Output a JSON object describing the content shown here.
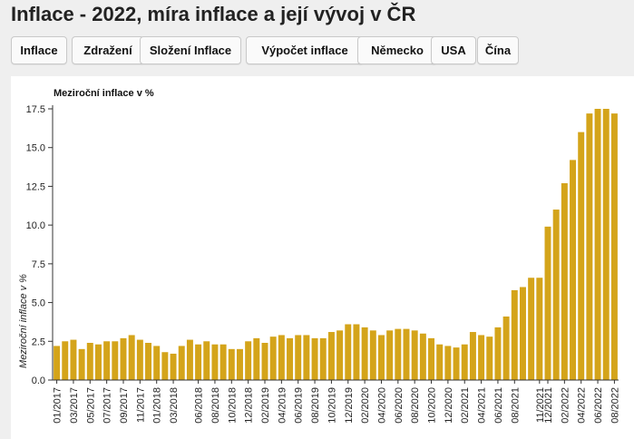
{
  "page": {
    "title": "Inflace - 2022, míra inflace a její vývoj v ČR"
  },
  "tabs": [
    {
      "label": "Inflace"
    },
    {
      "label": "Zdražení"
    },
    {
      "label": "Složení Inflace"
    },
    {
      "label": "Výpočet inflace"
    },
    {
      "label": "Německo"
    },
    {
      "label": "USA"
    },
    {
      "label": "Čína"
    }
  ],
  "colors": {
    "bar": "#d4a41a",
    "background": "#efefef",
    "panel": "#ffffff"
  },
  "chart_data": {
    "type": "bar",
    "title": "Meziroční inflace v %",
    "ylabel": "Meziroční inflace v %",
    "xlabel": "",
    "ylim": [
      0,
      17.5
    ],
    "yticks": [
      0.0,
      2.5,
      5.0,
      7.5,
      10.0,
      12.5,
      15.0,
      17.5
    ],
    "ytick_labels": [
      "0.0",
      "2.5",
      "5.0",
      "7.5",
      "10.0",
      "12.5",
      "15.0",
      "17.5"
    ],
    "grid": false,
    "legend": "none",
    "categories": [
      "01/2017",
      "02/2017",
      "03/2017",
      "04/2017",
      "05/2017",
      "06/2017",
      "07/2017",
      "08/2017",
      "09/2017",
      "10/2017",
      "11/2017",
      "12/2017",
      "01/2018",
      "02/2018",
      "03/2018",
      "04/2018",
      "05/2018",
      "06/2018",
      "07/2018",
      "08/2018",
      "09/2018",
      "10/2018",
      "11/2018",
      "12/2018",
      "01/2019",
      "02/2019",
      "03/2019",
      "04/2019",
      "05/2019",
      "06/2019",
      "07/2019",
      "08/2019",
      "09/2019",
      "10/2019",
      "11/2019",
      "12/2019",
      "01/2020",
      "02/2020",
      "03/2020",
      "04/2020",
      "05/2020",
      "06/2020",
      "07/2020",
      "08/2020",
      "09/2020",
      "10/2020",
      "11/2020",
      "12/2020",
      "01/2021",
      "02/2021",
      "03/2021",
      "04/2021",
      "05/2021",
      "06/2021",
      "07/2021",
      "08/2021",
      "09/2021",
      "10/2021",
      "11/2021",
      "12/2021",
      "01/2022",
      "02/2022",
      "03/2022",
      "04/2022",
      "05/2022",
      "06/2022",
      "07/2022",
      "08/2022"
    ],
    "visible_xtick_labels": [
      "01/2017",
      "03/2017",
      "05/2017",
      "07/2017",
      "09/2017",
      "11/2017",
      "01/2018",
      "03/2018",
      "06/2018",
      "08/2018",
      "10/2018",
      "12/2018",
      "02/2019",
      "04/2019",
      "06/2019",
      "08/2019",
      "10/2019",
      "12/2019",
      "02/2020",
      "04/2020",
      "06/2020",
      "08/2020",
      "10/2020",
      "12/2020",
      "02/2021",
      "04/2021",
      "06/2021",
      "08/2021",
      "11/2021",
      "12/2021",
      "02/2022",
      "04/2022",
      "06/2022",
      "08/2022"
    ],
    "values": [
      2.2,
      2.5,
      2.6,
      2.0,
      2.4,
      2.3,
      2.5,
      2.5,
      2.7,
      2.9,
      2.6,
      2.4,
      2.2,
      1.8,
      1.7,
      2.2,
      2.6,
      2.3,
      2.5,
      2.3,
      2.3,
      2.0,
      2.0,
      2.5,
      2.7,
      2.4,
      2.8,
      2.9,
      2.7,
      2.9,
      2.9,
      2.7,
      2.7,
      3.1,
      3.2,
      3.6,
      3.6,
      3.4,
      3.2,
      2.9,
      3.2,
      3.3,
      3.3,
      3.2,
      3.0,
      2.7,
      2.3,
      2.2,
      2.1,
      2.3,
      3.1,
      2.9,
      2.8,
      3.4,
      4.1,
      5.8,
      6.0,
      6.6,
      6.6,
      9.9,
      11.0,
      12.7,
      14.2,
      16.0,
      17.2,
      17.5,
      17.5,
      17.2
    ]
  }
}
